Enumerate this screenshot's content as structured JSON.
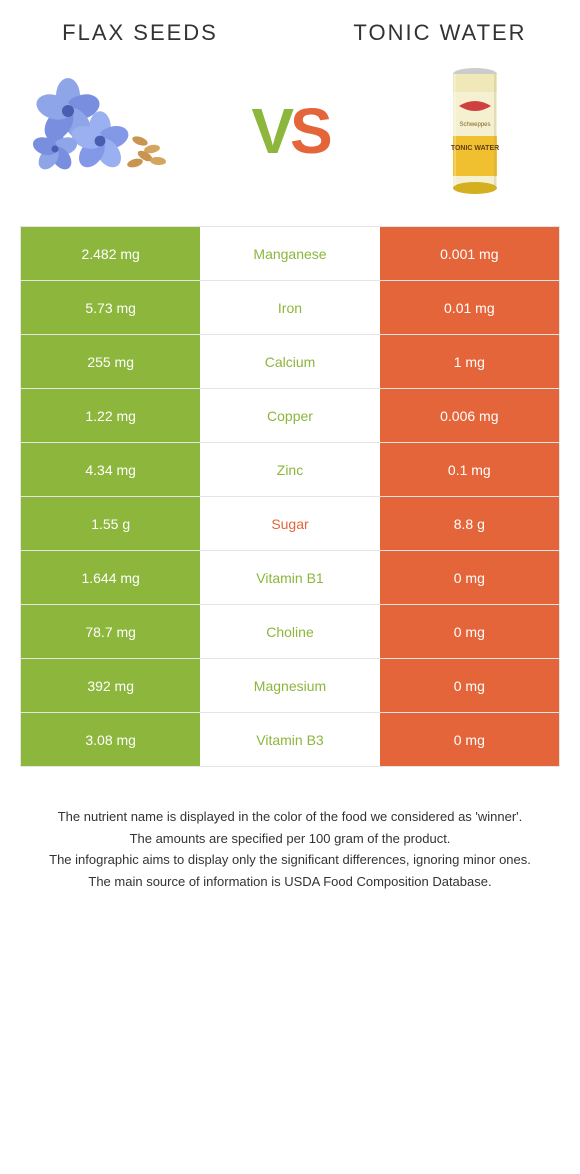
{
  "colors": {
    "green": "#8cb63c",
    "orange": "#e4653a",
    "text": "#333333",
    "white": "#ffffff",
    "border": "#e5e5e5"
  },
  "leftTitle": "FLAX SEEDS",
  "rightTitle": "TONIC WATER",
  "vsLetters": {
    "v": "V",
    "s": "S"
  },
  "rows": [
    {
      "left": "2.482 mg",
      "label": "Manganese",
      "right": "0.001 mg",
      "winner": "left"
    },
    {
      "left": "5.73 mg",
      "label": "Iron",
      "right": "0.01 mg",
      "winner": "left"
    },
    {
      "left": "255 mg",
      "label": "Calcium",
      "right": "1 mg",
      "winner": "left"
    },
    {
      "left": "1.22 mg",
      "label": "Copper",
      "right": "0.006 mg",
      "winner": "left"
    },
    {
      "left": "4.34 mg",
      "label": "Zinc",
      "right": "0.1 mg",
      "winner": "left"
    },
    {
      "left": "1.55 g",
      "label": "Sugar",
      "right": "8.8 g",
      "winner": "right"
    },
    {
      "left": "1.644 mg",
      "label": "Vitamin B1",
      "right": "0 mg",
      "winner": "left"
    },
    {
      "left": "78.7 mg",
      "label": "Choline",
      "right": "0 mg",
      "winner": "left"
    },
    {
      "left": "392 mg",
      "label": "Magnesium",
      "right": "0 mg",
      "winner": "left"
    },
    {
      "left": "3.08 mg",
      "label": "Vitamin B3",
      "right": "0 mg",
      "winner": "left"
    }
  ],
  "footer": [
    "The nutrient name is displayed in the color of the food we considered as 'winner'.",
    "The amounts are specified per 100 gram of the product.",
    "The infographic aims to display only the significant differences, ignoring minor ones.",
    "The main source of information is USDA Food Composition Database."
  ]
}
